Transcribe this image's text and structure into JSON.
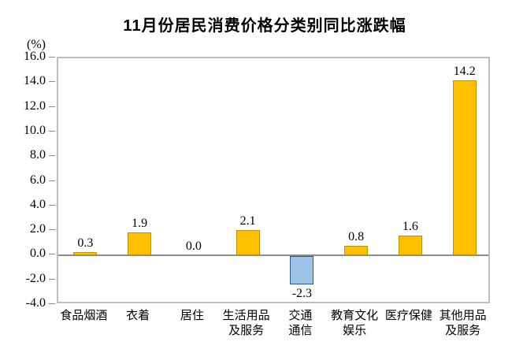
{
  "chart_data": {
    "type": "bar",
    "title": "11月份居民消费价格分类别同比涨跌幅",
    "unit_label": "(%)",
    "categories": [
      "食品烟酒",
      "衣着",
      "居住",
      "生活用品及服务",
      "交通通信",
      "教育文化娱乐",
      "医疗保健",
      "其他用品及服务"
    ],
    "category_lines": [
      [
        "食品烟酒"
      ],
      [
        "衣着"
      ],
      [
        "居住"
      ],
      [
        "生活用品",
        "及服务"
      ],
      [
        "交通",
        "通信"
      ],
      [
        "教育文化",
        "娱乐"
      ],
      [
        "医疗保健"
      ],
      [
        "其他用品",
        "及服务"
      ]
    ],
    "values": [
      0.3,
      1.9,
      0.0,
      2.1,
      -2.3,
      0.8,
      1.6,
      14.2
    ],
    "value_labels": [
      "0.3",
      "1.9",
      "0.0",
      "2.1",
      "-2.3",
      "0.8",
      "1.6",
      "14.2"
    ],
    "ylim": [
      -4.0,
      16.0
    ],
    "ytick_step": 2.0,
    "yticks": [
      16.0,
      14.0,
      12.0,
      10.0,
      8.0,
      6.0,
      4.0,
      2.0,
      0.0,
      -2.0,
      -4.0
    ],
    "xlabel": "",
    "ylabel": "(%)",
    "grid": false,
    "legend": "none",
    "colors": {
      "positive_fill": "#FFC000",
      "positive_border": "#BF9000",
      "negative_fill": "#9DC3E6",
      "negative_border": "#2E5B8F",
      "axis_border": "#BDBDBD",
      "zero_line": "#8C8C8C",
      "text": "#000000"
    }
  }
}
